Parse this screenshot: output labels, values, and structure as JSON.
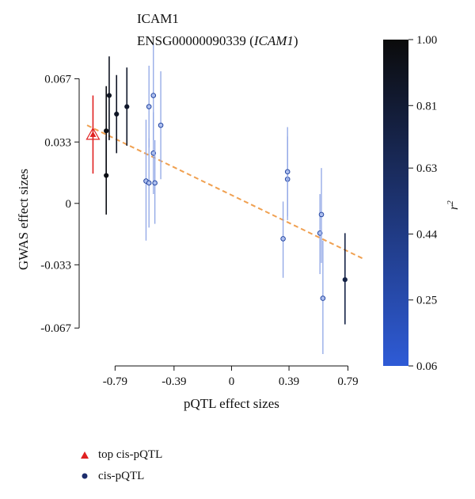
{
  "chart_data": {
    "type": "scatter",
    "title_lines": [
      "ICAM1",
      "ENSG00000090339 (",
      "ICAM1",
      ")"
    ],
    "xlabel": "pQTL effect sizes",
    "ylabel": "GWAS effect sizes",
    "x_ticks": [
      "-0.79",
      "-0.39",
      "0",
      "0.39",
      "0.79"
    ],
    "x_tick_values": [
      -0.79,
      -0.39,
      0,
      0.39,
      0.79
    ],
    "y_ticks": [
      "0.067",
      "0.033",
      "0",
      "-0.033",
      "-0.067"
    ],
    "y_tick_values": [
      0.067,
      0.033,
      0,
      -0.033,
      -0.067
    ],
    "xlim": [
      -0.98,
      0.9
    ],
    "ylim": [
      -0.078,
      0.071
    ],
    "colorbar": {
      "label": "r",
      "label_superscript": "2",
      "ticks": [
        "1.00",
        "0.81",
        "0.63",
        "0.44",
        "0.25",
        "0.06"
      ],
      "tick_values": [
        1.0,
        0.81,
        0.63,
        0.44,
        0.25,
        0.06
      ],
      "range": [
        0.06,
        1.0
      ],
      "color_low": "#2e5bd6",
      "color_high": "#0b0b0b"
    },
    "top_point": {
      "x": -0.94,
      "y": 0.037,
      "ci": [
        0.016,
        0.058
      ],
      "color": "#e02020",
      "legend": "top cis-pQTL"
    },
    "points": [
      {
        "x": -0.85,
        "y": 0.039,
        "ci": [
          0.015,
          0.063
        ],
        "r2": 0.96
      },
      {
        "x": -0.85,
        "y": 0.015,
        "ci": [
          -0.006,
          0.036
        ],
        "r2": 0.96
      },
      {
        "x": -0.83,
        "y": 0.058,
        "ci": [
          0.034,
          0.079
        ],
        "r2": 0.9
      },
      {
        "x": -0.78,
        "y": 0.048,
        "ci": [
          0.027,
          0.069
        ],
        "r2": 0.88
      },
      {
        "x": -0.71,
        "y": 0.052,
        "ci": [
          0.031,
          0.073
        ],
        "r2": 0.85
      },
      {
        "x": -0.58,
        "y": 0.012,
        "ci": [
          -0.02,
          0.045
        ],
        "r2": 0.3
      },
      {
        "x": -0.56,
        "y": 0.052,
        "ci": [
          0.03,
          0.074
        ],
        "r2": 0.3
      },
      {
        "x": -0.56,
        "y": 0.011,
        "ci": [
          -0.013,
          0.035
        ],
        "r2": 0.3
      },
      {
        "x": -0.53,
        "y": 0.058,
        "ci": [
          0.034,
          0.086
        ],
        "r2": 0.3
      },
      {
        "x": -0.53,
        "y": 0.027,
        "ci": [
          0.005,
          0.049
        ],
        "r2": 0.3
      },
      {
        "x": -0.52,
        "y": 0.011,
        "ci": [
          -0.011,
          0.034
        ],
        "r2": 0.3
      },
      {
        "x": -0.48,
        "y": 0.042,
        "ci": [
          0.013,
          0.071
        ],
        "r2": 0.3
      },
      {
        "x": 0.35,
        "y": -0.019,
        "ci": [
          -0.04,
          0.001
        ],
        "r2": 0.3
      },
      {
        "x": 0.38,
        "y": 0.013,
        "ci": [
          -0.009,
          0.036
        ],
        "r2": 0.3
      },
      {
        "x": 0.38,
        "y": 0.017,
        "ci": [
          -0.007,
          0.041
        ],
        "r2": 0.3
      },
      {
        "x": 0.6,
        "y": -0.016,
        "ci": [
          -0.038,
          0.005
        ],
        "r2": 0.3
      },
      {
        "x": 0.61,
        "y": -0.006,
        "ci": [
          -0.032,
          0.019
        ],
        "r2": 0.3
      },
      {
        "x": 0.62,
        "y": -0.051,
        "ci": [
          -0.081,
          -0.02
        ],
        "r2": 0.3
      },
      {
        "x": 0.77,
        "y": -0.041,
        "ci": [
          -0.065,
          -0.016
        ],
        "r2": 0.72
      }
    ],
    "regression_line": {
      "x": [
        -0.98,
        0.9
      ],
      "y": [
        0.042,
        -0.03
      ],
      "color": "#f0a050"
    },
    "error_bar_color_light": "#8fa6e6",
    "legend": [
      {
        "label": "top cis-pQTL",
        "marker": "triangle",
        "color": "#e02020"
      },
      {
        "label": "cis-pQTL",
        "marker": "circle",
        "color": "#1c2c6c"
      }
    ]
  }
}
